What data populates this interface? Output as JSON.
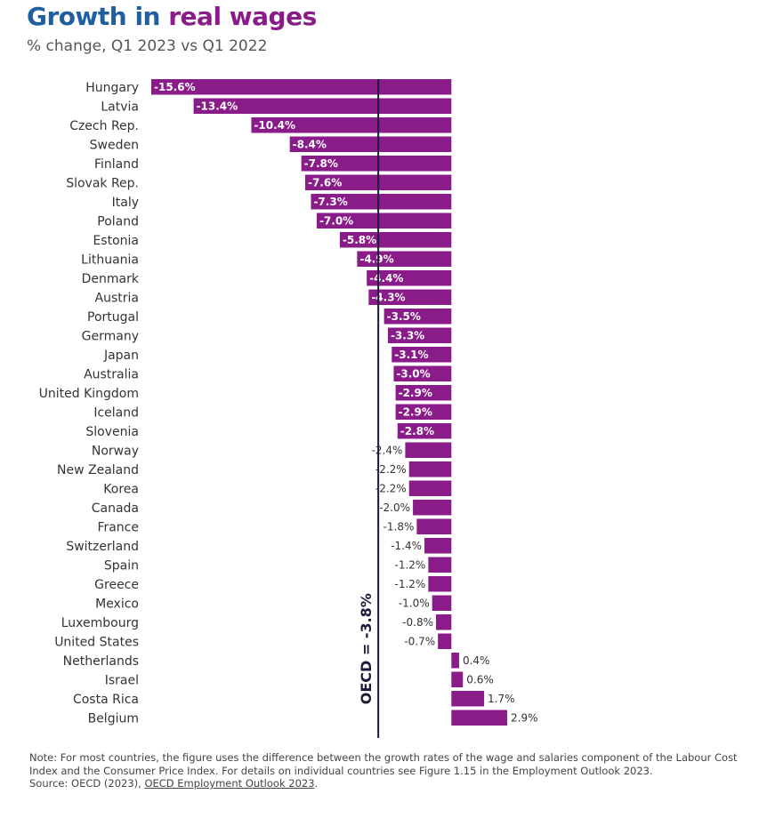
{
  "title": {
    "part1": "Growth in",
    "part2": "real wages"
  },
  "subtitle": "% change, Q1 2023 vs Q1 2022",
  "colors": {
    "title_blue": "#1f5f9f",
    "title_purple": "#8a1c8a",
    "bar": "#8a1c8a",
    "line": "#1a1a3a",
    "text": "#333333"
  },
  "chart_data": {
    "type": "bar",
    "orientation": "horizontal",
    "categories": [
      "Hungary",
      "Latvia",
      "Czech Rep.",
      "Sweden",
      "Finland",
      "Slovak Rep.",
      "Italy",
      "Poland",
      "Estonia",
      "Lithuania",
      "Denmark",
      "Austria",
      "Portugal",
      "Germany",
      "Japan",
      "Australia",
      "United Kingdom",
      "Iceland",
      "Slovenia",
      "Norway",
      "New Zealand",
      "Korea",
      "Canada",
      "France",
      "Switzerland",
      "Spain",
      "Greece",
      "Mexico",
      "Luxembourg",
      "United States",
      "Netherlands",
      "Israel",
      "Costa Rica",
      "Belgium"
    ],
    "values": [
      -15.6,
      -13.4,
      -10.4,
      -8.4,
      -7.8,
      -7.6,
      -7.3,
      -7.0,
      -5.8,
      -4.9,
      -4.4,
      -4.3,
      -3.5,
      -3.3,
      -3.1,
      -3.0,
      -2.9,
      -2.9,
      -2.8,
      -2.4,
      -2.2,
      -2.2,
      -2.0,
      -1.8,
      -1.4,
      -1.2,
      -1.2,
      -1.0,
      -0.8,
      -0.7,
      0.4,
      0.6,
      1.7,
      2.9
    ],
    "labels": [
      "-15.6%",
      "-13.4%",
      "-10.4%",
      "-8.4%",
      "-7.8%",
      "-7.6%",
      "-7.3%",
      "-7.0%",
      "-5.8%",
      "-4.9%",
      "-4.4%",
      "-4.3%",
      "-3.5%",
      "-3.3%",
      "-3.1%",
      "-3.0%",
      "-2.9%",
      "-2.9%",
      "-2.8%",
      "-2.4%",
      "-2.2%",
      "-2.2%",
      "-2.0%",
      "-1.8%",
      "-1.4%",
      "-1.2%",
      "-1.2%",
      "-1.0%",
      "-0.8%",
      "-0.7%",
      "0.4%",
      "0.6%",
      "1.7%",
      "2.9%"
    ],
    "reference_line": {
      "value": -3.8,
      "label": "OECD = -3.8%"
    },
    "xlim": [
      -15.6,
      2.9
    ],
    "grid": false
  },
  "note": {
    "text": "Note: For most countries, the figure uses the difference between the growth rates of the wage and salaries component of the Labour Cost Index and the Consumer Price Index. For details on individual countries see Figure 1.15 in the Employment Outlook 2023.",
    "source_prefix": "Source: OECD (2023), ",
    "source_link": "OECD Employment Outlook 2023",
    "source_suffix": "."
  }
}
